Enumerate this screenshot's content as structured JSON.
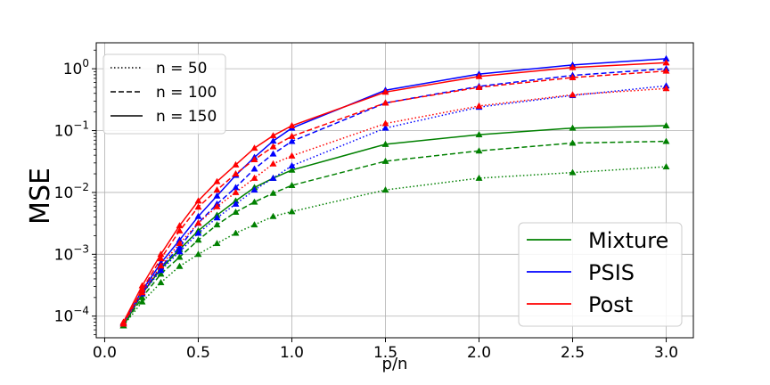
{
  "chart_data": {
    "type": "line",
    "title": "",
    "xlabel": "p/n",
    "ylabel": "MSE",
    "y_scale": "log",
    "xlim": [
      -0.045,
      3.145
    ],
    "ylim_log10": [
      -4.35,
      0.42
    ],
    "xticks": [
      {
        "value": 0.0,
        "label": "0.0"
      },
      {
        "value": 0.5,
        "label": "0.5"
      },
      {
        "value": 1.0,
        "label": "1.0"
      },
      {
        "value": 1.5,
        "label": "1.5"
      },
      {
        "value": 2.0,
        "label": "2.0"
      },
      {
        "value": 2.5,
        "label": "2.5"
      },
      {
        "value": 3.0,
        "label": "3.0"
      }
    ],
    "yticks": [
      {
        "exp": -4,
        "label": "10",
        "sup": "−4"
      },
      {
        "exp": -3,
        "label": "10",
        "sup": "−3"
      },
      {
        "exp": -2,
        "label": "10",
        "sup": "−2"
      },
      {
        "exp": -1,
        "label": "10",
        "sup": "−1"
      },
      {
        "exp": 0,
        "label": "10",
        "sup": "0"
      }
    ],
    "grid": true,
    "x": [
      0.1,
      0.2,
      0.3,
      0.4,
      0.5,
      0.6,
      0.7,
      0.8,
      0.9,
      1.0,
      1.5,
      2.0,
      2.5,
      3.0
    ],
    "series": [
      {
        "method": "Mixture",
        "n": "50",
        "color": "#008000",
        "dash": "dotted",
        "values": [
          7e-05,
          0.00017,
          0.00035,
          0.00064,
          0.001,
          0.0015,
          0.0022,
          0.003,
          0.0041,
          0.0049,
          0.011,
          0.017,
          0.021,
          0.026
        ]
      },
      {
        "method": "Mixture",
        "n": "100",
        "color": "#008000",
        "dash": "dashed",
        "values": [
          7e-05,
          0.0002,
          0.00048,
          0.0009,
          0.0017,
          0.003,
          0.0048,
          0.007,
          0.0097,
          0.013,
          0.032,
          0.047,
          0.063,
          0.067
        ]
      },
      {
        "method": "Mixture",
        "n": "150",
        "color": "#008000",
        "dash": "solid",
        "values": [
          7e-05,
          0.00023,
          0.00058,
          0.0012,
          0.0024,
          0.0043,
          0.0073,
          0.012,
          0.017,
          0.023,
          0.06,
          0.086,
          0.11,
          0.12
        ]
      },
      {
        "method": "PSIS",
        "n": "50",
        "color": "#0000ff",
        "dash": "dotted",
        "values": [
          7.5e-05,
          0.00023,
          0.00055,
          0.0011,
          0.0022,
          0.0039,
          0.0065,
          0.011,
          0.017,
          0.027,
          0.11,
          0.24,
          0.37,
          0.53
        ]
      },
      {
        "method": "PSIS",
        "n": "100",
        "color": "#0000ff",
        "dash": "dashed",
        "values": [
          7.5e-05,
          0.00024,
          0.00062,
          0.0013,
          0.0032,
          0.0065,
          0.012,
          0.024,
          0.042,
          0.067,
          0.28,
          0.52,
          0.78,
          1.0
        ]
      },
      {
        "method": "PSIS",
        "n": "150",
        "color": "#0000ff",
        "dash": "solid",
        "values": [
          7.8e-05,
          0.00026,
          0.00072,
          0.0017,
          0.0041,
          0.0088,
          0.019,
          0.037,
          0.068,
          0.11,
          0.45,
          0.82,
          1.15,
          1.45
        ]
      },
      {
        "method": "Post",
        "n": "50",
        "color": "#ff0000",
        "dash": "dotted",
        "values": [
          7.5e-05,
          0.00024,
          0.00065,
          0.0015,
          0.0032,
          0.0059,
          0.01,
          0.017,
          0.029,
          0.039,
          0.13,
          0.25,
          0.38,
          0.48
        ]
      },
      {
        "method": "Post",
        "n": "100",
        "color": "#ff0000",
        "dash": "dashed",
        "values": [
          7.5e-05,
          0.00027,
          0.00085,
          0.0024,
          0.0058,
          0.011,
          0.02,
          0.034,
          0.055,
          0.081,
          0.28,
          0.5,
          0.72,
          0.92
        ]
      },
      {
        "method": "Post",
        "n": "150",
        "color": "#ff0000",
        "dash": "solid",
        "values": [
          8e-05,
          0.00031,
          0.001,
          0.0029,
          0.0073,
          0.015,
          0.028,
          0.052,
          0.083,
          0.12,
          0.42,
          0.75,
          1.05,
          1.25
        ]
      }
    ],
    "legend_linestyle": {
      "placement": "upper-left",
      "entries": [
        {
          "label": "n = 50",
          "dash": "dotted"
        },
        {
          "label": "n = 100",
          "dash": "dashed"
        },
        {
          "label": "n = 150",
          "dash": "solid"
        }
      ]
    },
    "legend_method": {
      "placement": "lower-right",
      "entries": [
        {
          "label": "Mixture",
          "color": "#008000"
        },
        {
          "label": "PSIS",
          "color": "#0000ff"
        },
        {
          "label": "Post",
          "color": "#ff0000"
        }
      ]
    }
  }
}
